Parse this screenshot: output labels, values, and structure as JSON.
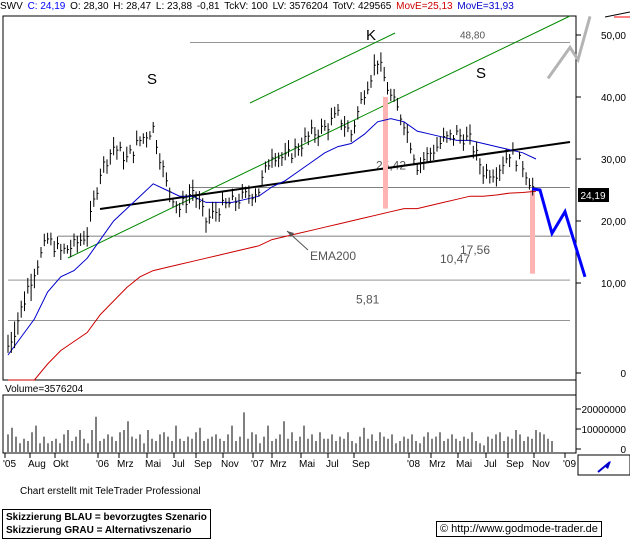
{
  "header": {
    "symbol": "SWV",
    "close": "C: 24,19",
    "open": "O: 28,30",
    "high": "H: 28,47",
    "low": "L: 23,88",
    "change": "-0,81",
    "tickvol": "TckV: 100",
    "lastvol": "LV: 3576204",
    "totvol": "TotV: 429565",
    "move1": "MovE=25,13",
    "move2": "MovE=31,93"
  },
  "colors": {
    "price": "#000000",
    "ema_short": "#0000cc",
    "ema200": "#cc0000",
    "channel": "#008800",
    "scenario_blue": "#0000ff",
    "scenario_grey": "#b4b4b4",
    "target_bar": "#ffb4b4",
    "levels": "#555555",
    "warning": "#ff0000"
  },
  "chart_data": [
    {
      "type": "line",
      "title": "",
      "x_ticks": [
        "'05",
        "Aug",
        "Okt",
        "'06",
        "Mrz",
        "Mai",
        "Jul",
        "Sep",
        "Nov",
        "'07",
        "Mrz",
        "Mai",
        "Jul",
        "Sep",
        "'08",
        "Mrz",
        "Mai",
        "Jul",
        "Sep",
        "Nov",
        "'09"
      ],
      "y_ticks": [
        0,
        10,
        20,
        30,
        40,
        50
      ],
      "y_tick_labels": [
        "0",
        "10,00",
        "20,00",
        "30,00",
        "40,00",
        "50,00"
      ],
      "ylim": [
        0,
        53
      ],
      "grid": false,
      "series": [
        {
          "name": "",
          "role": "price",
          "x": [
            "Jun 05",
            "Jul 05",
            "Aug 05",
            "Sep 05",
            "Okt 05",
            "Nov 05",
            "Dez 05",
            "Jan 06",
            "Feb 06",
            "Mrz 06",
            "Apr 06",
            "Mai 06",
            "Jun 06",
            "Jul 06",
            "Aug 06",
            "Sep 06",
            "Okt 06",
            "Nov 06",
            "Dez 06",
            "Jan 07",
            "Feb 07",
            "Mrz 07",
            "Apr 07",
            "Mai 07",
            "Jun 07",
            "Jul 07",
            "Aug 07",
            "Sep 07",
            "Okt 07",
            "Nov 07",
            "Dez 07",
            "Jan 08",
            "Feb 08",
            "Mrz 08",
            "Apr 08",
            "Mai 08",
            "Jun 08",
            "Jul 08",
            "Aug 08",
            "Sep 08",
            "Okt 08"
          ],
          "values": [
            3,
            7,
            12,
            17,
            15,
            16,
            18,
            28,
            32,
            30,
            33,
            35,
            26,
            22,
            25,
            20,
            22,
            23,
            24,
            25,
            31,
            30,
            32,
            34,
            35,
            37,
            34,
            41,
            46,
            40,
            36,
            29,
            31,
            33,
            34,
            33,
            28,
            28,
            31,
            29,
            24.19
          ]
        },
        {
          "name": "",
          "role": "ema-short",
          "values": [
            2,
            4,
            6,
            9,
            11,
            12,
            14,
            17,
            20,
            22,
            24,
            26,
            25,
            24,
            24,
            23,
            23,
            23,
            23.5,
            24,
            25.5,
            26.5,
            28,
            29.5,
            31,
            32,
            32.5,
            34,
            36,
            36.5,
            36,
            34.5,
            34,
            33.5,
            33,
            33,
            32.5,
            32,
            31.5,
            31,
            30
          ]
        },
        {
          "name": "EMA200",
          "role": "ema200",
          "values": [
            -6,
            -3,
            -1,
            1,
            2.5,
            3.5,
            4.5,
            6.5,
            8,
            9.5,
            11,
            12,
            12.5,
            13,
            13.5,
            14,
            14.5,
            15,
            15.5,
            16,
            17,
            17.5,
            18,
            18.5,
            19,
            19.5,
            20,
            20.5,
            21,
            21.5,
            22,
            22,
            22.5,
            23,
            23.5,
            24,
            24,
            24.2,
            24.5,
            24.6,
            24.8
          ]
        },
        {
          "name": "",
          "role": "volume-bars",
          "values": [
            8,
            11,
            7,
            4,
            6,
            5,
            9,
            12,
            4,
            7,
            4,
            5,
            6,
            4,
            8,
            10,
            5,
            7,
            10,
            6,
            4,
            10,
            16,
            5,
            6,
            8,
            7,
            5,
            9,
            10,
            14,
            7,
            6,
            8,
            4,
            10,
            6,
            5,
            8,
            9,
            7,
            5,
            12,
            6,
            5,
            7,
            6,
            9,
            11,
            5,
            6,
            7,
            8,
            6,
            5,
            8,
            12,
            5,
            7,
            18,
            6,
            9,
            8,
            4,
            7,
            12,
            5,
            6,
            8,
            14,
            6,
            9,
            5,
            7,
            12,
            6,
            8,
            5,
            9,
            6,
            6,
            8,
            5,
            7,
            6,
            9,
            5,
            4,
            7,
            11,
            6,
            8,
            5,
            9,
            7,
            6,
            8,
            4,
            5,
            7,
            6,
            8,
            5,
            4,
            7,
            9,
            6,
            7,
            9,
            5,
            6,
            8,
            6,
            5,
            7,
            6,
            9,
            5,
            4,
            3,
            7,
            6,
            8,
            9,
            5,
            7,
            6,
            10,
            8,
            5,
            7,
            6,
            10,
            9,
            8,
            6,
            5
          ]
        }
      ],
      "levels": [
        {
          "value": 48.8,
          "label": "48,80"
        },
        {
          "value": 25.42,
          "label": "25,42"
        },
        {
          "value": 17.56,
          "label": "17,56"
        },
        {
          "value": 10.47,
          "label": "10,47"
        },
        {
          "value": 5.81,
          "label": "5,81"
        }
      ],
      "pattern_labels": [
        "S",
        "K",
        "S"
      ],
      "annotations": [
        "EMA200"
      ],
      "last_price": "24,19",
      "scenario_blue": {
        "x": [
          "Okt 08",
          "Okt 08",
          "Nov 08",
          "Nov 08",
          "Dez 08"
        ],
        "values": [
          25.2,
          25,
          18,
          21.5,
          11
        ]
      },
      "scenario_grey": {
        "x": [
          "Dez 08",
          "Jan 09",
          "Jan 09",
          "Feb 09"
        ],
        "values": [
          43,
          48,
          46,
          53
        ]
      }
    },
    {
      "type": "bar",
      "title": "Volume=3576204",
      "y_tick_labels": [
        "0",
        "10000000",
        "20000000"
      ],
      "ylim": [
        0,
        25000000
      ]
    }
  ],
  "footer": {
    "credit": "Chart erstellt mit TeleTrader Professional",
    "legend_blue": "Skizzierung BLAU = bevorzugtes Szenario",
    "legend_grey": "Skizzierung GRAU = Alternativszenario",
    "url": "http://www.godmode-trader.de"
  }
}
